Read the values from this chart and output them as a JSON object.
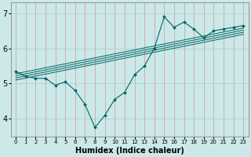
{
  "title": "",
  "xlabel": "Humidex (Indice chaleur)",
  "ylabel": "",
  "bg_color": "#cce8e8",
  "line_color": "#006666",
  "grid_color_v": "#cc9999",
  "grid_color_h": "#aacccc",
  "xlim": [
    -0.5,
    23.5
  ],
  "ylim": [
    3.5,
    7.3
  ],
  "xticks": [
    0,
    1,
    2,
    3,
    4,
    5,
    6,
    7,
    8,
    9,
    10,
    11,
    12,
    13,
    14,
    15,
    16,
    17,
    18,
    19,
    20,
    21,
    22,
    23
  ],
  "yticks": [
    4,
    5,
    6,
    7
  ],
  "data_x": [
    0,
    1,
    2,
    3,
    4,
    5,
    6,
    7,
    8,
    9,
    10,
    11,
    12,
    13,
    14,
    15,
    16,
    17,
    18,
    19,
    20,
    21,
    22,
    23
  ],
  "data_y": [
    5.35,
    5.2,
    5.15,
    5.15,
    4.95,
    5.05,
    4.8,
    4.4,
    3.75,
    4.1,
    4.55,
    4.75,
    5.25,
    5.5,
    6.0,
    6.9,
    6.6,
    6.75,
    6.55,
    6.3,
    6.5,
    6.55,
    6.6,
    6.65
  ],
  "reg_lines": [
    [
      [
        0,
        23
      ],
      [
        5.28,
        6.58
      ]
    ],
    [
      [
        0,
        23
      ],
      [
        5.22,
        6.52
      ]
    ],
    [
      [
        0,
        23
      ],
      [
        5.16,
        6.46
      ]
    ],
    [
      [
        0,
        23
      ],
      [
        5.1,
        6.4
      ]
    ]
  ],
  "xlabel_fontsize": 7,
  "xlabel_bold": true,
  "tick_fontsize_x": 5,
  "tick_fontsize_y": 7
}
